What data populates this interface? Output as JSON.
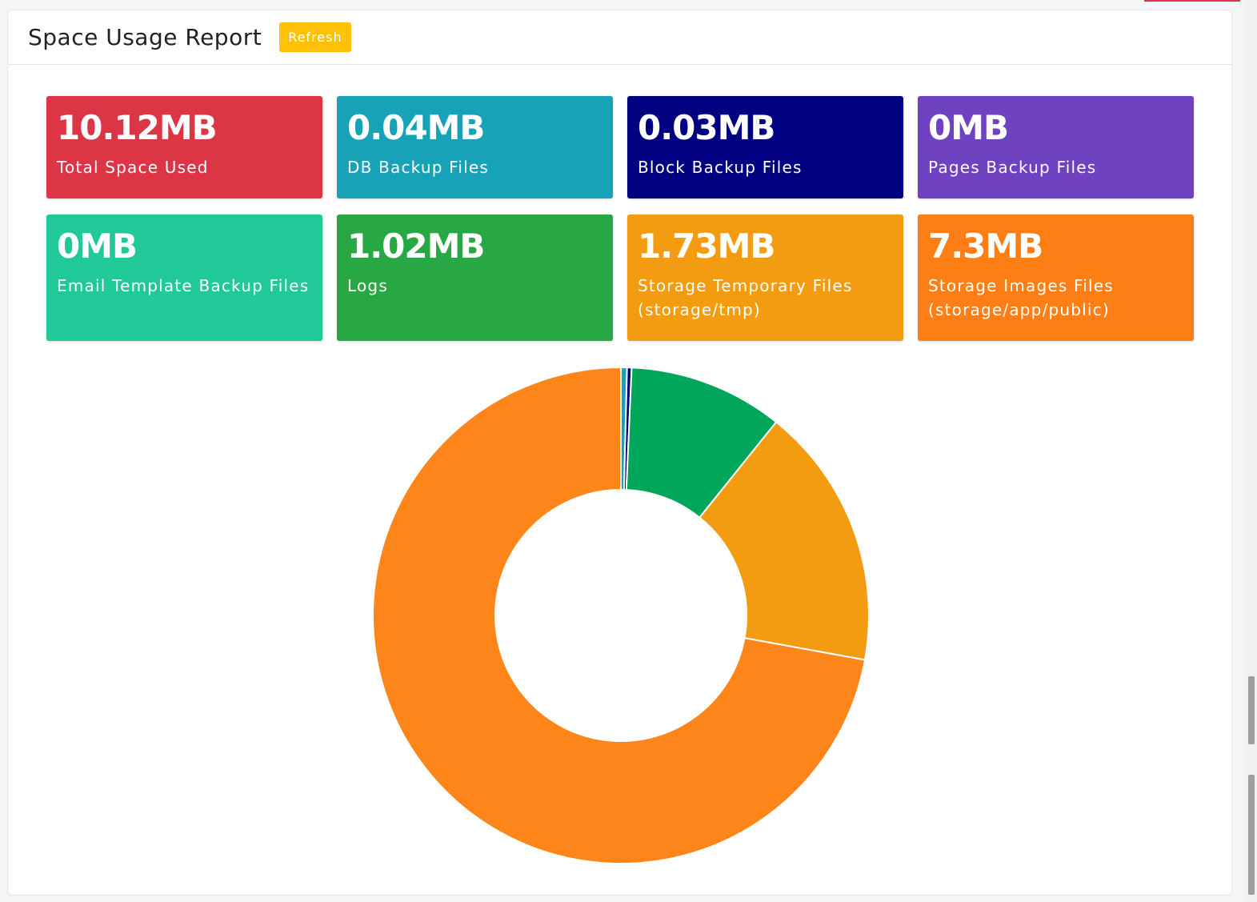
{
  "header": {
    "title": "Space Usage Report",
    "refresh_label": "Refresh"
  },
  "tiles": [
    {
      "value": "10.12MB",
      "label": "Total Space Used",
      "color": "#dc3545"
    },
    {
      "value": "0.04MB",
      "label": "DB Backup Files",
      "color": "#17a2b8"
    },
    {
      "value": "0.03MB",
      "label": "Block Backup Files",
      "color": "#000080"
    },
    {
      "value": "0MB",
      "label": "Pages Backup Files",
      "color": "#6f42c1"
    },
    {
      "value": "0MB",
      "label": "Email Template Backup Files",
      "color": "#20c997"
    },
    {
      "value": "1.02MB",
      "label": "Logs",
      "color": "#28a745"
    },
    {
      "value": "1.73MB",
      "label": "Storage Temporary Files (storage/tmp)",
      "color": "#f39c12"
    },
    {
      "value": "7.3MB",
      "label": "Storage Images Files (storage/app/public)",
      "color": "#fd7e14"
    }
  ],
  "chart_data": {
    "type": "pie",
    "subtype": "doughnut",
    "categories": [
      "DB Backup Files",
      "Block Backup Files",
      "Pages Backup Files",
      "Email Template Backup Files",
      "Logs",
      "Storage Temporary Files (storage/tmp)",
      "Storage Images Files (storage/app/public)"
    ],
    "values": [
      0.04,
      0.03,
      0,
      0,
      1.02,
      1.73,
      7.3
    ],
    "colors": [
      "#17a2b8",
      "#000080",
      "#6f42c1",
      "#20c997",
      "#00a65a",
      "#f39c12",
      "#fd851a"
    ],
    "unit": "MB",
    "title": "",
    "legend": "none"
  }
}
